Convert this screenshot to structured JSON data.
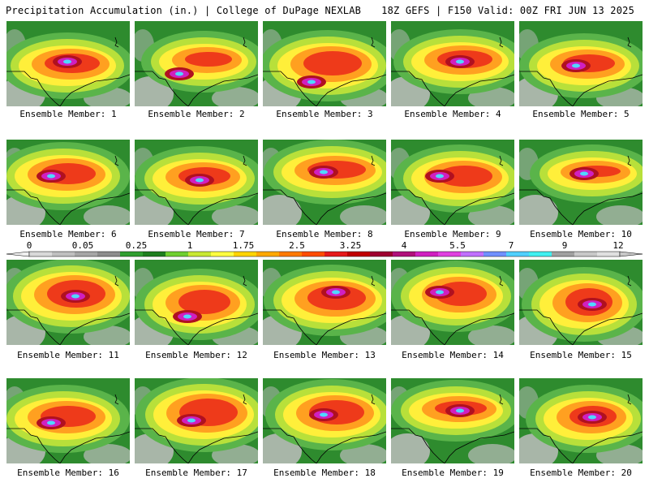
{
  "header": {
    "title": "Precipitation Accumulation (in.) | College of DuPage NEXLAB",
    "run_info": "18Z GEFS | F150 Valid: 00Z FRI JUN 13 2025"
  },
  "panel_caption_prefix": "Ensemble Member:",
  "members": [
    {
      "number": "1"
    },
    {
      "number": "2"
    },
    {
      "number": "3"
    },
    {
      "number": "4"
    },
    {
      "number": "5"
    },
    {
      "number": "6"
    },
    {
      "number": "7"
    },
    {
      "number": "8"
    },
    {
      "number": "9"
    },
    {
      "number": "10"
    },
    {
      "number": "11"
    },
    {
      "number": "12"
    },
    {
      "number": "13"
    },
    {
      "number": "14"
    },
    {
      "number": "15"
    },
    {
      "number": "16"
    },
    {
      "number": "17"
    },
    {
      "number": "18"
    },
    {
      "number": "19"
    },
    {
      "number": "20"
    }
  ],
  "colorbar": {
    "labels": [
      "0",
      "0.05",
      "0.25",
      "1",
      "1.75",
      "2.5",
      "3.25",
      "4",
      "5.5",
      "7",
      "9",
      "12"
    ],
    "colors": [
      "#d9d9d9",
      "#bfbfbf",
      "#a6a6a6",
      "#8c8c8c",
      "#2f9e2f",
      "#1e7e1e",
      "#6fcf2f",
      "#c8e832",
      "#ffff40",
      "#ffd400",
      "#ffa800",
      "#ff7a00",
      "#ff4d00",
      "#e61a1a",
      "#c00000",
      "#9e0030",
      "#b0107a",
      "#d020c0",
      "#e040e0",
      "#c070ff",
      "#7090ff",
      "#50d0ff",
      "#40f0f0",
      "#a0a0a0",
      "#c8c8c8",
      "#e0e0e0"
    ]
  },
  "map_colors": {
    "dry_gray": "#bdbdbd",
    "green": "#2e8b2e",
    "light_green": "#5ab44a",
    "yellow_green": "#b8e03a",
    "yellow": "#ffef3a",
    "orange": "#ffa020",
    "red": "#ee3a1a",
    "dark_red": "#b01020",
    "magenta": "#d020c0",
    "cyan": "#50d8ff"
  }
}
